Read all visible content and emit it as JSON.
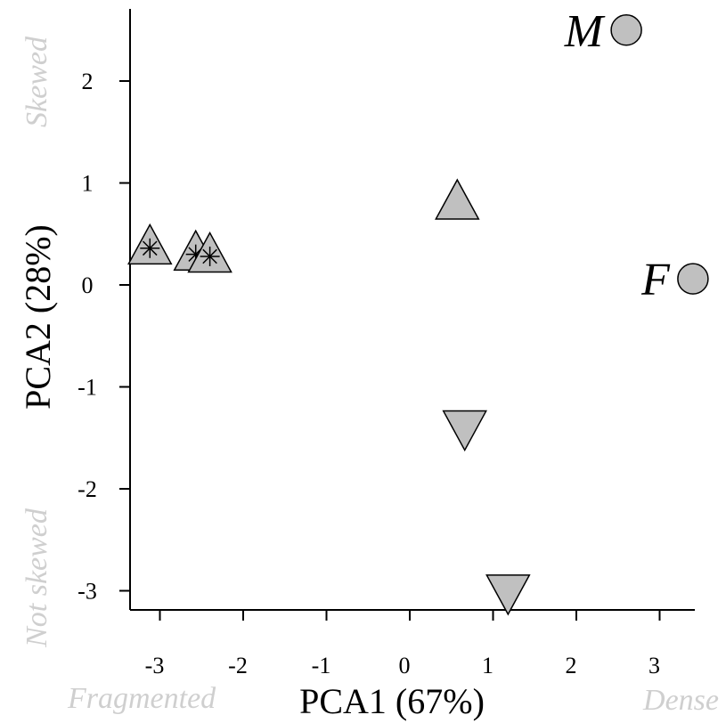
{
  "chart_data": {
    "type": "scatter",
    "title": "",
    "xlabel": "PCA1 (67%)",
    "ylabel": "PCA2 (28%)",
    "xlim": [
      -3.55,
      3.55
    ],
    "ylim": [
      -3.15,
      2.7
    ],
    "xticks": [
      -3,
      -2,
      -1,
      0,
      1,
      2,
      3
    ],
    "yticks": [
      -3,
      -2,
      -1,
      0,
      1,
      2
    ],
    "grid": false,
    "axis_annotations": {
      "x_low": "Fragmented",
      "x_high": "Dense",
      "y_low": "Not skewed",
      "y_high": "Skewed"
    },
    "colors": {
      "marker_fill": "#c0c0c0",
      "marker_stroke": "#000000",
      "annotation_text": "#cfcfcf"
    },
    "points": [
      {
        "x": 2.6,
        "y": 2.5,
        "shape": "circle",
        "label": "M"
      },
      {
        "x": 3.4,
        "y": 0.06,
        "shape": "circle",
        "label": "F"
      },
      {
        "x": 0.57,
        "y": 0.8,
        "shape": "triangle-up",
        "label": ""
      },
      {
        "x": 0.66,
        "y": -1.39,
        "shape": "triangle-down",
        "label": ""
      },
      {
        "x": 1.18,
        "y": -3.0,
        "shape": "triangle-down",
        "label": ""
      },
      {
        "x": -3.12,
        "y": 0.36,
        "shape": "triangle-up-star",
        "label": ""
      },
      {
        "x": -2.57,
        "y": 0.3,
        "shape": "triangle-up-star",
        "label": ""
      },
      {
        "x": -2.4,
        "y": 0.28,
        "shape": "triangle-up-star",
        "label": ""
      }
    ]
  }
}
